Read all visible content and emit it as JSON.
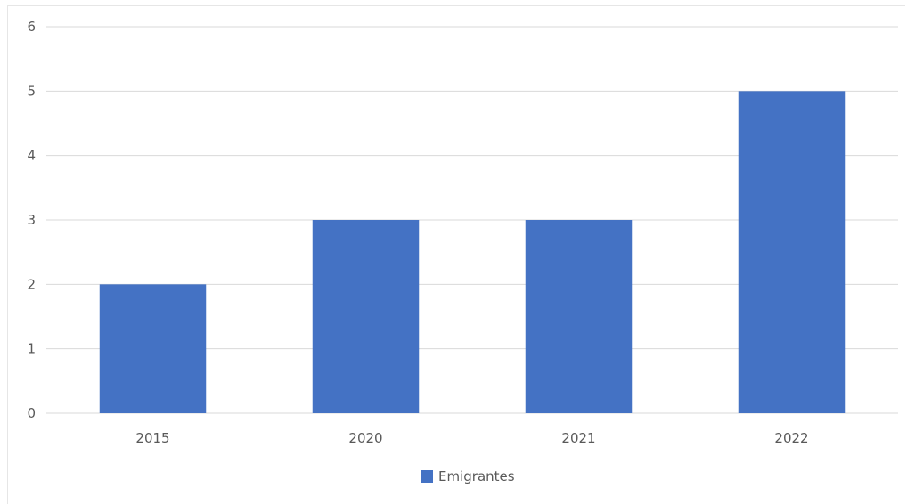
{
  "chart_data": {
    "type": "bar",
    "categories": [
      "2015",
      "2020",
      "2021",
      "2022"
    ],
    "series": [
      {
        "name": "Emigrantes",
        "values": [
          2,
          3,
          3,
          5
        ]
      }
    ],
    "ylim": [
      0,
      6
    ],
    "y_ticks": [
      "0",
      "1",
      "2",
      "3",
      "4",
      "5",
      "6"
    ],
    "grid": true,
    "legend_position": "bottom",
    "bar_color": "#4472C4",
    "grid_color": "#d9d9d9"
  }
}
